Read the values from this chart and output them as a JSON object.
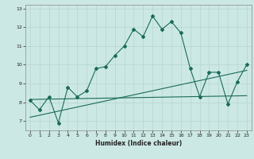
{
  "xlabel": "Humidex (Indice chaleur)",
  "ylabel": "",
  "bg_color": "#cce8e4",
  "grid_color": "#b8d8d4",
  "line_color": "#1a6b5a",
  "xlim": [
    -0.5,
    23.5
  ],
  "ylim": [
    6.5,
    13.2
  ],
  "x_ticks": [
    0,
    1,
    2,
    3,
    4,
    5,
    6,
    7,
    8,
    9,
    10,
    11,
    12,
    13,
    14,
    15,
    16,
    17,
    18,
    19,
    20,
    21,
    22,
    23
  ],
  "y_ticks": [
    7,
    8,
    9,
    10,
    11,
    12,
    13
  ],
  "main_line_x": [
    0,
    1,
    2,
    3,
    4,
    5,
    6,
    7,
    8,
    9,
    10,
    11,
    12,
    13,
    14,
    15,
    16,
    17,
    18,
    19,
    20,
    21,
    22,
    23
  ],
  "main_line_y": [
    8.1,
    7.6,
    8.3,
    6.9,
    8.8,
    8.3,
    8.6,
    9.8,
    9.9,
    10.5,
    11.0,
    11.9,
    11.5,
    12.6,
    11.9,
    12.3,
    11.7,
    9.8,
    8.3,
    9.6,
    9.6,
    7.9,
    9.1,
    10.0
  ],
  "reg_line1_x": [
    0,
    23
  ],
  "reg_line1_y": [
    8.15,
    8.35
  ],
  "reg_line2_x": [
    0,
    23
  ],
  "reg_line2_y": [
    7.2,
    9.7
  ]
}
